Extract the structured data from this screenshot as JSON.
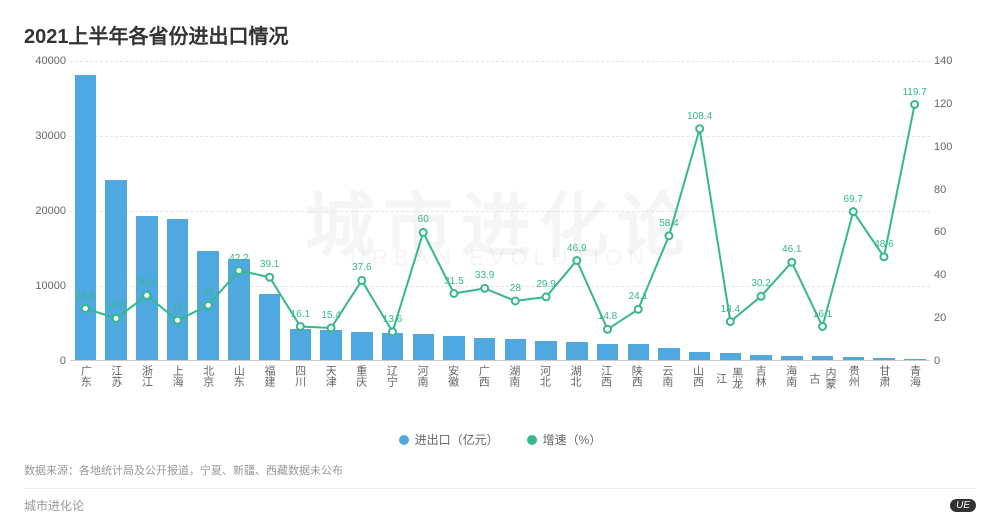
{
  "title": "2021上半年各省份进出口情况",
  "watermark_main": "城市进化论",
  "watermark_sub": "URBAN EVOLUTION",
  "chart": {
    "type": "bar+line",
    "bar_color": "#4fa8e0",
    "line_color": "#37b88b",
    "point_fill": "#ffffff",
    "grid_color": "#e5e5e5",
    "axis_color": "#cccccc",
    "background_color": "#ffffff",
    "label_fontsize": 11,
    "title_fontsize": 20,
    "y_left": {
      "min": 0,
      "max": 40000,
      "ticks": [
        0,
        10000,
        20000,
        30000,
        40000
      ]
    },
    "y_right": {
      "min": 0,
      "max": 140,
      "ticks": [
        0,
        20,
        40,
        60,
        80,
        100,
        120,
        140
      ]
    },
    "bar_width_ratio": 0.7,
    "categories": [
      "广东",
      "江苏",
      "浙江",
      "上海",
      "北京",
      "山东",
      "福建",
      "四川",
      "天津",
      "重庆",
      "辽宁",
      "河南",
      "安徽",
      "广西",
      "湖南",
      "河北",
      "湖北",
      "江西",
      "陕西",
      "云南",
      "山西",
      "黑龙江",
      "吉林",
      "海南",
      "内蒙古",
      "贵州",
      "甘肃",
      "青海"
    ],
    "bar_values": [
      38000,
      24000,
      19200,
      18800,
      14500,
      13500,
      8800,
      4200,
      4000,
      3800,
      3600,
      3500,
      3200,
      3000,
      2800,
      2600,
      2400,
      2200,
      2100,
      1600,
      1100,
      900,
      700,
      600,
      500,
      350,
      250,
      200
    ],
    "line_values": [
      24.5,
      19.9,
      30.6,
      19,
      26,
      42.2,
      39.1,
      16.1,
      15.4,
      37.6,
      13.6,
      60,
      31.5,
      33.9,
      28,
      29.9,
      46.9,
      14.8,
      24.1,
      58.4,
      108.4,
      18.4,
      30.2,
      46.1,
      16.1,
      69.7,
      48.6,
      119.7
    ]
  },
  "legend": {
    "bar_label": "进出口（亿元）",
    "line_label": "增速（%）"
  },
  "footnote": "数据来源：各地统计局及公开报道，宁夏、新疆、西藏数据未公布",
  "brand": "城市进化论",
  "badge": "UE"
}
